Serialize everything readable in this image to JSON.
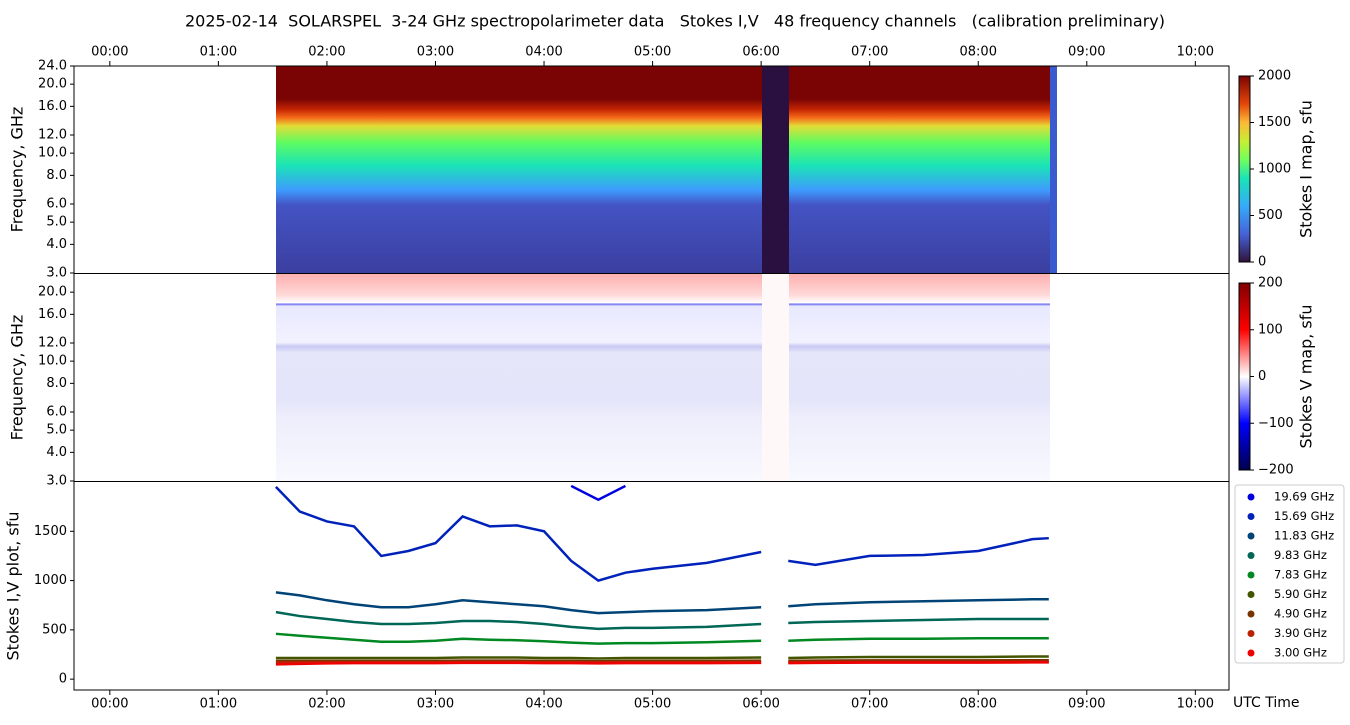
{
  "title": "2025-02-14  SOLARSPEL  3-24 GHz spectropolarimeter data   Stokes I,V   48 frequency channels   (calibration preliminary)",
  "chart_data": [
    {
      "type": "heatmap",
      "ylabel": "Frequency, GHz",
      "log_y": true,
      "ylim": [
        3,
        24
      ],
      "yticks": [
        {
          "value": 3,
          "label": "3.0"
        },
        {
          "value": 4,
          "label": "4.0"
        },
        {
          "value": 5,
          "label": "5.0"
        },
        {
          "value": 6,
          "label": "6.0"
        },
        {
          "value": 8,
          "label": "8.0"
        },
        {
          "value": 10,
          "label": "10.0"
        },
        {
          "value": 12,
          "label": "12.0"
        },
        {
          "value": 16,
          "label": "16.0"
        },
        {
          "value": 20,
          "label": "20.0"
        },
        {
          "value": 24,
          "label": "24.0"
        }
      ],
      "xlim": [
        -0.33,
        10.31
      ],
      "xticks": [
        {
          "value": 0,
          "label": "00:00"
        },
        {
          "value": 1,
          "label": "01:00"
        },
        {
          "value": 2,
          "label": "02:00"
        },
        {
          "value": 3,
          "label": "03:00"
        },
        {
          "value": 4,
          "label": "04:00"
        },
        {
          "value": 5,
          "label": "05:00"
        },
        {
          "value": 6,
          "label": "06:00"
        },
        {
          "value": 7,
          "label": "07:00"
        },
        {
          "value": 8,
          "label": "08:00"
        },
        {
          "value": 9,
          "label": "09:00"
        },
        {
          "value": 10,
          "label": "10:00"
        }
      ],
      "colorbar": {
        "label": "Stokes I map, sfu",
        "lim": [
          0,
          2000
        ],
        "ticks": [
          0,
          500,
          1000,
          1500,
          2000
        ]
      }
    },
    {
      "type": "heatmap",
      "ylabel": "Frequency, GHz",
      "log_y": true,
      "ylim": [
        3,
        24
      ],
      "yticks": [
        {
          "value": 3,
          "label": "3.0"
        },
        {
          "value": 4,
          "label": "4.0"
        },
        {
          "value": 5,
          "label": "5.0"
        },
        {
          "value": 6,
          "label": "6.0"
        },
        {
          "value": 8,
          "label": "8.0"
        },
        {
          "value": 10,
          "label": "10.0"
        },
        {
          "value": 12,
          "label": "12.0"
        },
        {
          "value": 16,
          "label": "16.0"
        },
        {
          "value": 20,
          "label": "20.0"
        }
      ],
      "xlim": [
        -0.33,
        10.31
      ],
      "colorbar": {
        "label": "Stokes V map, sfu",
        "lim": [
          -200,
          200
        ],
        "ticks": [
          {
            "value": -200,
            "label": "−200"
          },
          {
            "value": -100,
            "label": "−100"
          },
          0,
          100,
          200
        ]
      }
    },
    {
      "type": "line",
      "ylabel": "Stokes I,V plot, sfu",
      "xlabel": "UTC Time",
      "legend": "outside right",
      "xlim": [
        -0.33,
        10.31
      ],
      "ylim": [
        -110,
        2000
      ],
      "yticks": [
        0,
        500,
        1000,
        1500
      ],
      "xticks": [
        {
          "value": 0,
          "label": "00:00"
        },
        {
          "value": 1,
          "label": "01:00"
        },
        {
          "value": 2,
          "label": "02:00"
        },
        {
          "value": 3,
          "label": "03:00"
        },
        {
          "value": 4,
          "label": "04:00"
        },
        {
          "value": 5,
          "label": "05:00"
        },
        {
          "value": 6,
          "label": "06:00"
        },
        {
          "value": 7,
          "label": "07:00"
        },
        {
          "value": 8,
          "label": "08:00"
        },
        {
          "value": 9,
          "label": "09:00"
        },
        {
          "value": 10,
          "label": "10:00"
        }
      ],
      "x": [
        1.53,
        1.75,
        2.0,
        2.25,
        2.5,
        2.75,
        3.0,
        3.25,
        3.5,
        3.75,
        4.0,
        4.25,
        4.5,
        4.75,
        5.0,
        5.5,
        6.0,
        6.1,
        6.25,
        6.5,
        7.0,
        7.5,
        8.0,
        8.5,
        8.65
      ],
      "series": [
        {
          "name": "19.69 GHz",
          "color": "#0000e0",
          "values": [
            null,
            null,
            null,
            null,
            null,
            null,
            null,
            null,
            null,
            null,
            null,
            1960,
            1820,
            1960,
            null,
            null,
            null,
            null,
            null,
            null,
            null,
            null,
            null,
            null,
            null
          ]
        },
        {
          "name": "15.69 GHz",
          "color": "#0022bb",
          "values": [
            1950,
            1700,
            1600,
            1550,
            1250,
            1300,
            1380,
            1650,
            1550,
            1560,
            1500,
            1200,
            1000,
            1080,
            1120,
            1180,
            1290,
            null,
            1200,
            1160,
            1250,
            1260,
            1300,
            1420,
            1430
          ]
        },
        {
          "name": "11.83 GHz",
          "color": "#004477",
          "values": [
            880,
            850,
            800,
            760,
            730,
            730,
            760,
            800,
            780,
            760,
            740,
            700,
            670,
            680,
            690,
            700,
            730,
            null,
            740,
            760,
            780,
            790,
            800,
            810,
            810
          ]
        },
        {
          "name": "9.83 GHz",
          "color": "#006655",
          "values": [
            680,
            640,
            610,
            580,
            560,
            560,
            570,
            590,
            590,
            580,
            560,
            530,
            510,
            520,
            520,
            530,
            560,
            null,
            570,
            580,
            590,
            600,
            610,
            610,
            610
          ]
        },
        {
          "name": "7.83 GHz",
          "color": "#008822",
          "values": [
            460,
            440,
            420,
            400,
            380,
            380,
            390,
            410,
            400,
            395,
            385,
            370,
            360,
            365,
            365,
            375,
            390,
            null,
            390,
            400,
            410,
            410,
            415,
            415,
            415
          ]
        },
        {
          "name": "5.90 GHz",
          "color": "#445500",
          "values": [
            215,
            215,
            215,
            215,
            215,
            215,
            215,
            220,
            220,
            220,
            215,
            215,
            210,
            215,
            215,
            215,
            220,
            null,
            215,
            220,
            225,
            225,
            225,
            230,
            230
          ]
        },
        {
          "name": "4.90 GHz",
          "color": "#773300",
          "values": [
            185,
            185,
            185,
            185,
            185,
            185,
            185,
            188,
            188,
            188,
            185,
            185,
            182,
            185,
            185,
            185,
            188,
            null,
            185,
            188,
            190,
            190,
            190,
            192,
            192
          ]
        },
        {
          "name": "3.90 GHz",
          "color": "#bb2200",
          "values": [
            170,
            170,
            172,
            172,
            172,
            172,
            172,
            174,
            174,
            174,
            172,
            172,
            170,
            172,
            172,
            172,
            174,
            null,
            172,
            174,
            176,
            176,
            176,
            178,
            178
          ]
        },
        {
          "name": "3.00 GHz",
          "color": "#ee0000",
          "values": [
            150,
            155,
            160,
            162,
            162,
            162,
            162,
            165,
            165,
            165,
            162,
            162,
            160,
            162,
            162,
            162,
            165,
            null,
            162,
            165,
            168,
            168,
            168,
            170,
            170
          ]
        }
      ]
    }
  ]
}
